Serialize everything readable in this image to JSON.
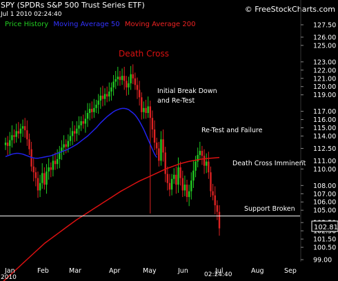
{
  "header": {
    "title": "SPY (SPDRs S&P 500 Trust Series ETF)",
    "date": "Jul 1 2010 02:24:40",
    "brand": "© FreeStockCharts.com",
    "bottom_left": "2010",
    "bottom_right_time": "02:24:40"
  },
  "colors": {
    "background": "#000000",
    "price_up": "#22cc22",
    "price_down": "#dd2222",
    "ma50": "#2222ee",
    "ma200": "#dd1111",
    "support_line": "#ffffff",
    "text": "#ffffff"
  },
  "chart_data": {
    "type": "candlestick",
    "title": "",
    "xlabel": "",
    "ylabel": "",
    "ylim": [
      98.75,
      128.0
    ],
    "x_tick_labels": [
      "Jan",
      "Feb",
      "Mar",
      "Apr",
      "May",
      "Jun",
      "Jul",
      "Aug",
      "Sep"
    ],
    "y_tick_labels": [
      "127.50",
      "126.00",
      "125.00",
      "123.00",
      "122.00",
      "121.00",
      "120.00",
      "119.00",
      "117.00",
      "116.00",
      "115.00",
      "114.00",
      "112.50",
      "111.00",
      "110.00",
      "108.00",
      "107.00",
      "106.00",
      "105.00",
      "103.50",
      "102.50",
      "101.50",
      "100.50",
      "99.00"
    ],
    "last_price": "102.81",
    "legend": [
      {
        "label": "Price History",
        "color": "#22cc22"
      },
      {
        "label": "Moving Average 50",
        "color": "#2222ee"
      },
      {
        "label": "Moving Average 200",
        "color": "#dd1111"
      }
    ],
    "support_level": 104.3,
    "annotations": [
      {
        "text": "Death Cross",
        "color": "#dd1111"
      },
      {
        "text": "Initial Break Down",
        "color": "#ffffff"
      },
      {
        "text": "and Re-Test",
        "color": "#ffffff"
      },
      {
        "text": "Re-Test and Failure",
        "color": "#ffffff"
      },
      {
        "text": "Death Cross Imminent",
        "color": "#ffffff"
      },
      {
        "text": "Support Broken",
        "color": "#ffffff"
      }
    ],
    "close_series": [
      113.2,
      112.8,
      113.5,
      114.1,
      113.9,
      114.6,
      114.3,
      114.9,
      115.2,
      114.7,
      113.6,
      112.4,
      110.3,
      109.6,
      108.9,
      107.4,
      108.3,
      109.5,
      108.1,
      109.7,
      110.2,
      109.9,
      111.0,
      110.6,
      111.2,
      112.1,
      112.6,
      113.0,
      112.7,
      113.4,
      114.0,
      114.6,
      114.3,
      114.9,
      115.3,
      115.8,
      115.5,
      116.1,
      116.8,
      117.3,
      116.9,
      117.4,
      117.8,
      118.3,
      118.9,
      118.5,
      119.1,
      118.8,
      119.4,
      119.9,
      120.6,
      120.9,
      121.2,
      120.8,
      121.3,
      120.7,
      119.9,
      120.4,
      121.5,
      121.0,
      120.2,
      119.6,
      118.7,
      116.9,
      117.4,
      116.8,
      117.6,
      116.2,
      114.8,
      113.2,
      112.5,
      111.0,
      113.6,
      112.0,
      109.4,
      108.3,
      107.5,
      108.8,
      109.3,
      108.1,
      110.2,
      108.9,
      107.4,
      108.1,
      106.6,
      107.3,
      108.6,
      109.8,
      110.9,
      111.7,
      112.2,
      111.6,
      110.4,
      110.9,
      109.6,
      107.3,
      106.8,
      105.6,
      104.8,
      102.8
    ],
    "ma50_series": [
      111.5,
      111.6,
      111.7,
      111.8,
      111.85,
      111.9,
      111.9,
      111.85,
      111.8,
      111.7,
      111.6,
      111.5,
      111.4,
      111.35,
      111.3,
      111.3,
      111.35,
      111.4,
      111.45,
      111.5,
      111.55,
      111.6,
      111.7,
      111.8,
      111.9,
      112.0,
      112.1,
      112.2,
      112.3,
      112.4,
      112.55,
      112.7,
      112.85,
      113.0,
      113.2,
      113.4,
      113.6,
      113.8,
      114.0,
      114.25,
      114.5,
      114.75,
      115.0,
      115.3,
      115.6,
      115.85,
      116.1,
      116.35,
      116.55,
      116.75,
      116.95,
      117.1,
      117.2,
      117.3,
      117.35,
      117.35,
      117.3,
      117.2,
      117.0,
      116.8,
      116.55,
      116.2,
      115.8,
      115.3,
      114.8,
      114.2,
      113.6,
      113.0,
      112.4,
      111.8,
      111.4
    ],
    "ma200_series": [
      96.0,
      96.5,
      97.0,
      97.5,
      98.0,
      98.5,
      99.0,
      99.5,
      100.0,
      100.5,
      101.0,
      101.4,
      101.8,
      102.2,
      102.6,
      103.0,
      103.4,
      103.8,
      104.15,
      104.5,
      104.85,
      105.2,
      105.55,
      105.9,
      106.25,
      106.6,
      106.95,
      107.3,
      107.6,
      107.9,
      108.2,
      108.5,
      108.75,
      109.0,
      109.25,
      109.5,
      109.75,
      110.0,
      110.2,
      110.4,
      110.6,
      110.75,
      110.9,
      111.0,
      111.1,
      111.2,
      111.25,
      111.3,
      111.35,
      111.4
    ]
  }
}
